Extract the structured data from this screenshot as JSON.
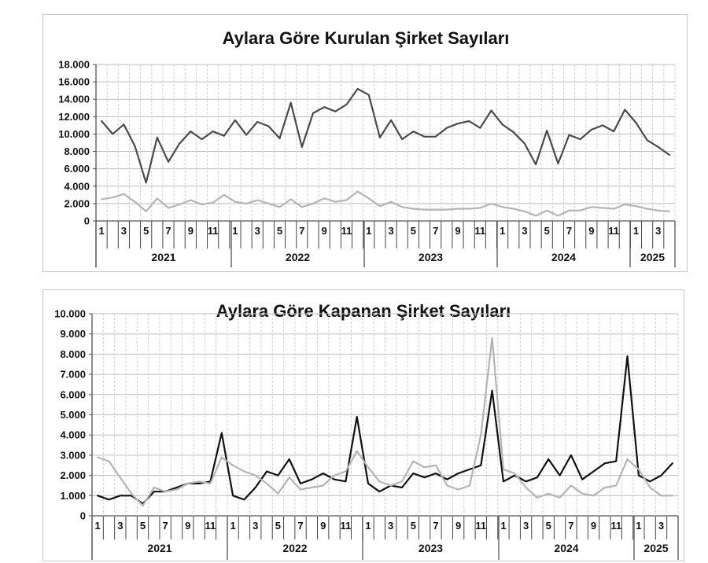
{
  "chart_data": [
    {
      "type": "line",
      "title": "Aylara Göre Kurulan Şirket Sayıları",
      "xlabel": "",
      "ylabel": "",
      "ylim": [
        0,
        18000
      ],
      "y_ticks": [
        "0",
        "2.000",
        "4.000",
        "6.000",
        "8.000",
        "10.000",
        "12.000",
        "14.000",
        "16.000",
        "18.000"
      ],
      "x_month_labels": [
        "1",
        "3",
        "5",
        "7",
        "9",
        "11"
      ],
      "years": [
        "2021",
        "2022",
        "2023",
        "2024",
        "2025"
      ],
      "grid": true,
      "legend": "none",
      "series": [
        {
          "color": "#4a4a4a",
          "values": [
            11500,
            10000,
            11100,
            8600,
            4400,
            9600,
            6800,
            8900,
            10300,
            9400,
            10300,
            9800,
            11600,
            9900,
            11400,
            10900,
            9500,
            13600,
            8500,
            12400,
            13100,
            12600,
            13400,
            15200,
            14500,
            9600,
            11600,
            9400,
            10300,
            9700,
            9700,
            10700,
            11200,
            11500,
            10700,
            12700,
            11100,
            10200,
            8900,
            6500,
            10400,
            6600,
            9900,
            9400,
            10500,
            11000,
            10300,
            12800,
            11300,
            9300,
            8500,
            7600
          ]
        },
        {
          "color": "#b4b4b4",
          "values": [
            2500,
            2700,
            3100,
            2200,
            1100,
            2600,
            1500,
            1900,
            2400,
            1900,
            2100,
            3000,
            2200,
            2000,
            2400,
            2000,
            1600,
            2500,
            1600,
            2000,
            2600,
            2200,
            2400,
            3400,
            2600,
            1700,
            2200,
            1600,
            1400,
            1300,
            1300,
            1300,
            1400,
            1400,
            1500,
            2000,
            1600,
            1400,
            1100,
            600,
            1200,
            600,
            1200,
            1200,
            1600,
            1500,
            1400,
            1900,
            1700,
            1400,
            1200,
            1100
          ]
        }
      ]
    },
    {
      "type": "line",
      "title": "Aylara Göre Kapanan Şirket Sayıları",
      "xlabel": "",
      "ylabel": "",
      "ylim": [
        0,
        10000
      ],
      "y_ticks": [
        "0",
        "1.000",
        "2.000",
        "3.000",
        "4.000",
        "5.000",
        "6.000",
        "7.000",
        "8.000",
        "9.000",
        "10.000"
      ],
      "x_month_labels": [
        "1",
        "3",
        "5",
        "7",
        "9",
        "11"
      ],
      "years": [
        "2021",
        "2022",
        "2023",
        "2024",
        "2025"
      ],
      "grid": true,
      "legend": "none",
      "series": [
        {
          "color": "#111111",
          "values": [
            1000,
            800,
            1000,
            1000,
            600,
            1200,
            1200,
            1400,
            1600,
            1600,
            1700,
            4100,
            1000,
            800,
            1400,
            2200,
            2000,
            2800,
            1600,
            1800,
            2100,
            1800,
            1700,
            4900,
            1600,
            1200,
            1500,
            1400,
            2100,
            1900,
            2100,
            1800,
            2100,
            2300,
            2500,
            6200,
            1700,
            2000,
            1700,
            1900,
            2800,
            2000,
            3000,
            1800,
            2200,
            2600,
            2700,
            7900,
            2000,
            1700,
            2000,
            2600
          ]
        },
        {
          "color": "#b4b4b4",
          "values": [
            2900,
            2700,
            1900,
            1100,
            500,
            1400,
            1200,
            1300,
            1600,
            1700,
            1600,
            2900,
            2500,
            2200,
            2000,
            1600,
            1100,
            1900,
            1300,
            1400,
            1500,
            2000,
            2200,
            3200,
            2400,
            1700,
            1500,
            1700,
            2700,
            2400,
            2500,
            1500,
            1300,
            1500,
            4000,
            8800,
            2300,
            2100,
            1400,
            900,
            1100,
            900,
            1500,
            1100,
            1000,
            1400,
            1500,
            2800,
            2300,
            1400,
            1000,
            1000
          ]
        }
      ]
    }
  ]
}
